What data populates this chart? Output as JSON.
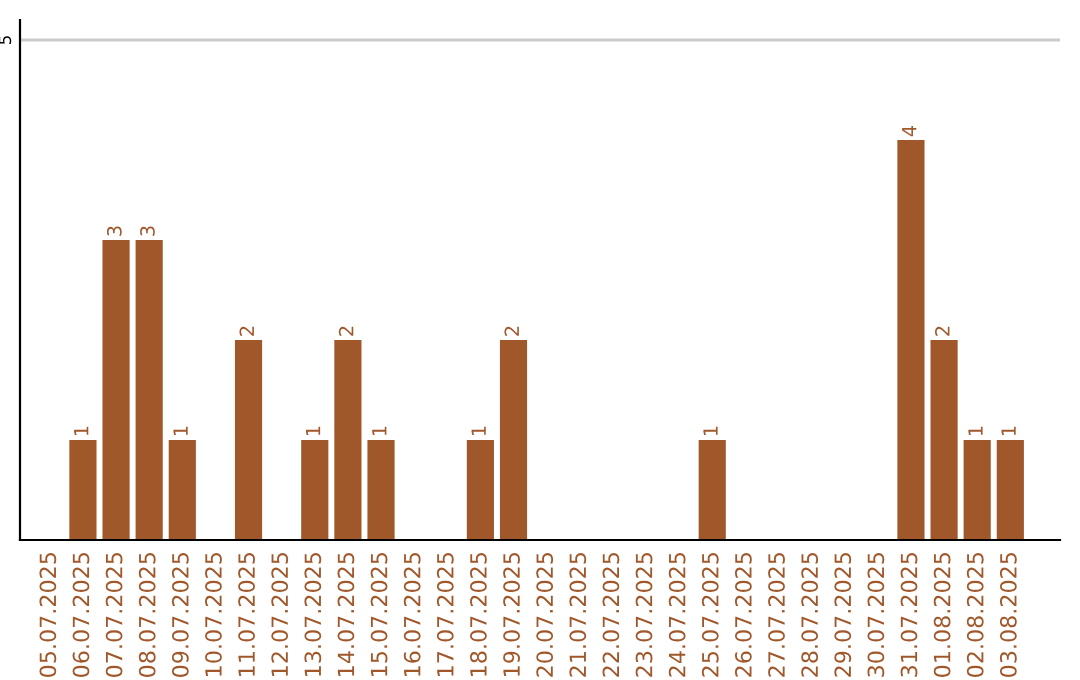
{
  "chart_data": {
    "type": "bar",
    "categories": [
      "05.07.2025",
      "06.07.2025",
      "07.07.2025",
      "08.07.2025",
      "09.07.2025",
      "10.07.2025",
      "11.07.2025",
      "12.07.2025",
      "13.07.2025",
      "14.07.2025",
      "15.07.2025",
      "16.07.2025",
      "17.07.2025",
      "18.07.2025",
      "19.07.2025",
      "20.07.2025",
      "21.07.2025",
      "22.07.2025",
      "23.07.2025",
      "24.07.2025",
      "25.07.2025",
      "26.07.2025",
      "27.07.2025",
      "28.07.2025",
      "29.07.2025",
      "30.07.2025",
      "31.07.2025",
      "01.08.2025",
      "02.08.2025",
      "03.08.2025"
    ],
    "values": [
      0,
      1,
      3,
      3,
      1,
      0,
      2,
      0,
      1,
      2,
      1,
      0,
      0,
      1,
      2,
      0,
      0,
      0,
      0,
      0,
      1,
      0,
      0,
      0,
      0,
      0,
      4,
      2,
      1,
      1
    ],
    "value_labels": [
      null,
      "1",
      "3",
      "3",
      "1",
      null,
      "2",
      null,
      "1",
      "2",
      "1",
      null,
      null,
      "1",
      "2",
      null,
      null,
      null,
      null,
      null,
      "1",
      null,
      null,
      null,
      null,
      null,
      "4",
      "2",
      "1",
      "1"
    ],
    "color": "#a0572a",
    "ylim": [
      0,
      5.2
    ],
    "yticks": [
      5
    ],
    "grid": "y"
  }
}
